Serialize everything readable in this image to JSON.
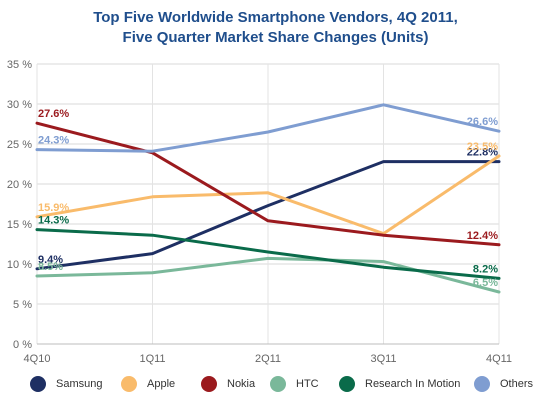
{
  "chart_data": {
    "type": "line",
    "title": "Top Five Worldwide Smartphone Vendors, 4Q 2011,",
    "subtitle": "Five Quarter Market Share Changes (Units)",
    "categories": [
      "4Q10",
      "1Q11",
      "2Q11",
      "3Q11",
      "4Q11"
    ],
    "y_ticks": [
      "0 %",
      "5 %",
      "10 %",
      "15 %",
      "20 %",
      "25 %",
      "30 %",
      "35 %"
    ],
    "ylim": [
      0,
      35
    ],
    "grid": true,
    "legend_position": "bottom",
    "series": [
      {
        "name": "Samsung",
        "color": "#1e2f63",
        "values": [
          9.4,
          11.3,
          17.3,
          22.8,
          22.8
        ],
        "start_label": "9.4%",
        "end_label": "22.8%"
      },
      {
        "name": "Apple",
        "color": "#f9bb6b",
        "values": [
          15.9,
          18.4,
          18.9,
          13.8,
          23.5
        ],
        "start_label": "15.9%",
        "end_label": "23.5%"
      },
      {
        "name": "Nokia",
        "color": "#9b1a1e",
        "values": [
          27.6,
          23.9,
          15.4,
          13.6,
          12.4
        ],
        "start_label": "27.6%",
        "end_label": "12.4%"
      },
      {
        "name": "HTC",
        "color": "#7ab89a",
        "values": [
          8.5,
          8.9,
          10.7,
          10.3,
          6.5
        ],
        "start_label": "8.5%",
        "end_label": "6.5%"
      },
      {
        "name": "Research In Motion",
        "color": "#0a6b4a",
        "values": [
          14.3,
          13.6,
          11.5,
          9.6,
          8.2
        ],
        "start_label": "14.3%",
        "end_label": "8.2%"
      },
      {
        "name": "Others",
        "color": "#7f9dd1",
        "values": [
          24.3,
          24.1,
          26.5,
          29.9,
          26.6
        ],
        "start_label": "24.3%",
        "end_label": "26.6%"
      }
    ]
  }
}
